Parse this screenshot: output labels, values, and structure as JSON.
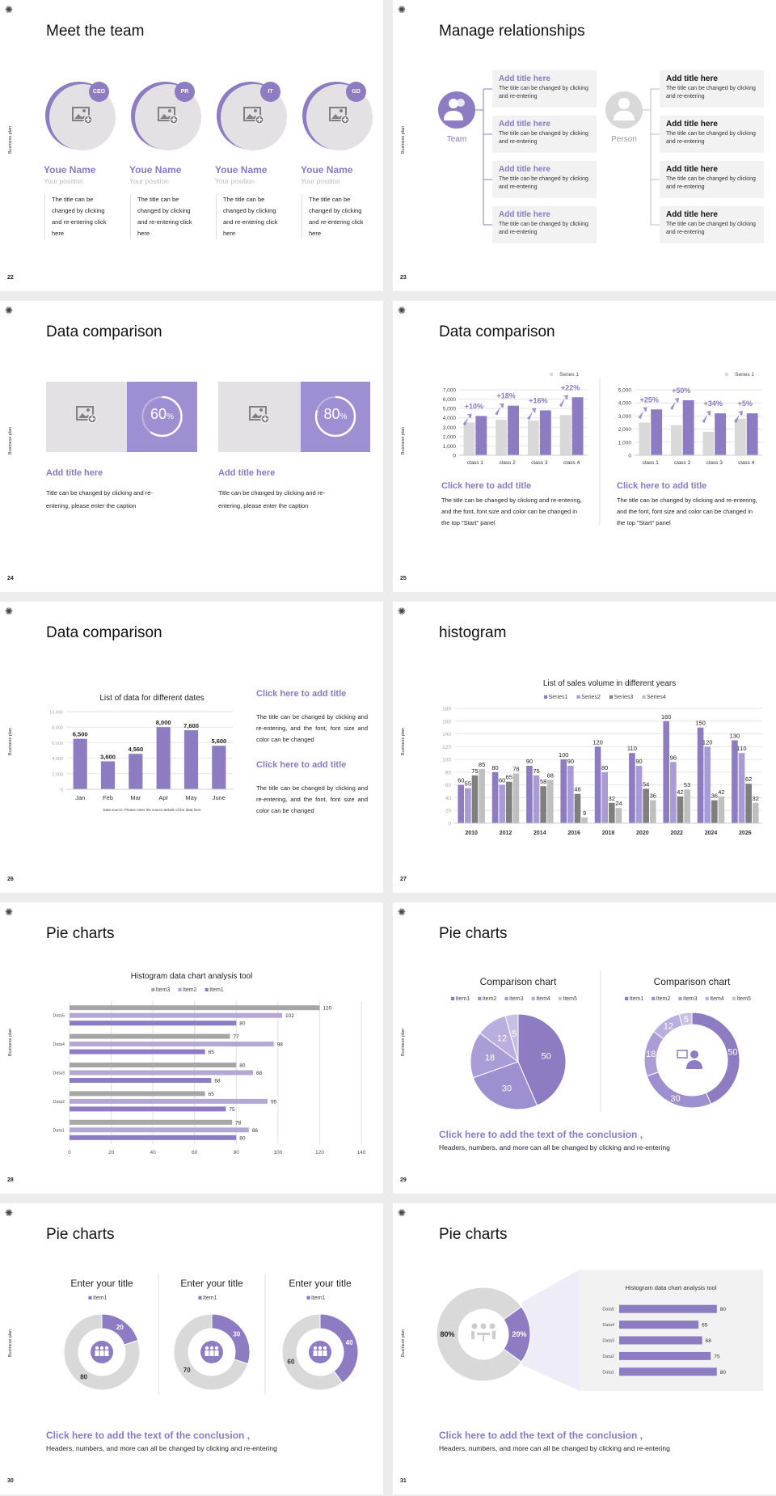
{
  "brand": {
    "sidebar_label": "Business plan",
    "colors": {
      "purple": "#8e7cc3",
      "light_purple": "#b4a7d6",
      "gray": "#d9d9d9",
      "dark_gray": "#7f7f7f",
      "mid_gray": "#a6a6a6",
      "title_purple": "#8a79c4"
    }
  },
  "s22": {
    "page": "22",
    "title": "Meet the team",
    "members": [
      {
        "badge": "CEO",
        "name": "Youe Name",
        "position": "Your position",
        "desc": "The title can be changed by clicking and re-entering click here"
      },
      {
        "badge": "PR",
        "name": "Youe Name",
        "position": "Your position",
        "desc": "The title can be changed by clicking and re-entering click here"
      },
      {
        "badge": "IT",
        "name": "Youe Name",
        "position": "Your position",
        "desc": "The title can be changed by clicking and re-entering click here"
      },
      {
        "badge": "GD",
        "name": "Youe Name",
        "position": "Your position",
        "desc": "The title can be changed by clicking and re-entering click here"
      }
    ]
  },
  "s23": {
    "page": "23",
    "title": "Manage relationships",
    "team_label": "Team",
    "person_label": "Person",
    "left_items": [
      {
        "title": "Add title here",
        "desc": "The title can be changed by clicking and re-entering"
      },
      {
        "title": "Add title here",
        "desc": "The title can be changed by clicking and re-entering"
      },
      {
        "title": "Add title here",
        "desc": "The title can be changed by clicking and re-entering"
      },
      {
        "title": "Add title here",
        "desc": "The title can be changed by clicking and re-entering"
      }
    ],
    "right_items": [
      {
        "title": "Add title here",
        "desc": "The title can be changed by clicking and re-entering"
      },
      {
        "title": "Add title here",
        "desc": "The title can be changed by clicking and re-entering"
      },
      {
        "title": "Add title here",
        "desc": "The title can be changed by clicking and re-entering"
      },
      {
        "title": "Add title here",
        "desc": "The title can be changed by clicking and re-entering"
      }
    ]
  },
  "s24": {
    "page": "24",
    "title": "Data comparison",
    "cards": [
      {
        "percent": "60",
        "unit": "%",
        "progress": 0.6,
        "title": "Add title here",
        "desc": "Title can be changed by clicking and re-entering, please enter the caption"
      },
      {
        "percent": "80",
        "unit": "%",
        "progress": 0.8,
        "title": "Add title here",
        "desc": "Title can be changed by clicking and re-entering, please enter the caption"
      }
    ]
  },
  "s25": {
    "page": "25",
    "title": "Data comparison",
    "columns": [
      {
        "title": "Click here to add title",
        "desc": "The title can be changed by clicking and re-entering, and the font, font size and color can be changed in the top \"Start\" panel"
      },
      {
        "title": "Click here to add title",
        "desc": "The title can be changed by clicking and re-entering, and the font, font size and color can be changed in the top \"Start\" panel"
      }
    ]
  },
  "s26": {
    "page": "26",
    "title": "Data comparison",
    "notes": [
      {
        "title": "Click here to add title",
        "desc": "The title can be changed by clicking and re-entering, and the font, font size and color can be changed"
      },
      {
        "title": "Click here to add title",
        "desc": "The title can be changed by clicking and re-entering, and the font, font size and color can be changed"
      }
    ]
  },
  "s27": {
    "page": "27",
    "title": "histogram"
  },
  "s28": {
    "page": "28",
    "title": "Pie charts"
  },
  "s29": {
    "page": "29",
    "title": "Pie charts",
    "conclusion": "Click here to add the text of the conclusion ,",
    "sub": "Headers, numbers, and more can all be changed by clicking and re-entering"
  },
  "s30": {
    "page": "30",
    "title": "Pie charts",
    "conclusion": "Click here to add the text of the conclusion ,",
    "sub": "Headers, numbers, and more can all be changed by clicking and re-entering"
  },
  "s31": {
    "page": "31",
    "title": "Pie charts",
    "conclusion": "Click here to add the text of the conclusion ,",
    "sub": "Headers, numbers, and more can all be changed by clicking and re-entering"
  },
  "chart_data": [
    {
      "type": "bar",
      "categories": [
        "class 1",
        "class 2",
        "class 3",
        "class 4"
      ],
      "yticks": [
        0,
        1000,
        2000,
        3000,
        4000,
        5000,
        6000,
        7000
      ],
      "ytick_labels": [
        "0",
        "1,000",
        "2,000",
        "3,000",
        "4,000",
        "5,000",
        "6,000",
        "7,000"
      ],
      "ylim": [
        0,
        7000
      ],
      "series": [
        {
          "name": "Series 1",
          "color": "#d9d9d9",
          "values": [
            3500,
            3800,
            3700,
            4300
          ]
        },
        {
          "color": "#8e7cc3",
          "values": [
            4200,
            5300,
            4800,
            6200
          ]
        }
      ],
      "annotations": [
        "+10%",
        "+18%",
        "+16%",
        "+22%"
      ],
      "legend": "top-right",
      "grid": true
    },
    {
      "type": "bar",
      "categories": [
        "class 1",
        "class 2",
        "class 3",
        "class 4"
      ],
      "yticks": [
        0,
        1000,
        2000,
        3000,
        4000,
        5000
      ],
      "ytick_labels": [
        "0",
        "1,000",
        "2,000",
        "3,000",
        "4,000",
        "5,000"
      ],
      "ylim": [
        0,
        5000
      ],
      "series": [
        {
          "name": "Series 1",
          "color": "#d9d9d9",
          "values": [
            2500,
            2300,
            1800,
            2800
          ]
        },
        {
          "color": "#8e7cc3",
          "values": [
            3500,
            4200,
            3200,
            3200
          ]
        }
      ],
      "annotations": [
        "+25%",
        "+50%",
        "+34%",
        "+5%"
      ],
      "legend": "top-right",
      "grid": true
    },
    {
      "type": "bar",
      "title": "List of data for different dates",
      "categories": [
        "Jan",
        "Feb",
        "Mar",
        "Apr",
        "May",
        "June"
      ],
      "yticks": [
        0,
        2000,
        4000,
        6000,
        8000,
        10000
      ],
      "ytick_labels": [
        "0",
        "2,000",
        "4,000",
        "6,000",
        "8,000",
        "10,000"
      ],
      "ylim": [
        0,
        10000
      ],
      "series": [
        {
          "color": "#8e7cc3",
          "values": [
            6500,
            3600,
            4560,
            8000,
            7600,
            5600
          ],
          "data_labels": [
            "6,500",
            "3,600",
            "4,560",
            "8,000",
            "7,600",
            "5,600"
          ]
        }
      ],
      "note": "Data source: Please enter the source details of the data here",
      "grid": true
    },
    {
      "type": "bar",
      "title": "List of sales volume in different years",
      "categories": [
        "2010",
        "2012",
        "2014",
        "2016",
        "2018",
        "2020",
        "2022",
        "2024",
        "2026"
      ],
      "yticks": [
        0,
        20,
        40,
        60,
        80,
        100,
        120,
        140,
        160,
        180
      ],
      "ytick_labels": [
        "0",
        "20",
        "40",
        "60",
        "80",
        "100",
        "120",
        "140",
        "160",
        "180"
      ],
      "ylim": [
        0,
        180
      ],
      "series": [
        {
          "name": "Series1",
          "color": "#8e7cc3",
          "values": [
            60,
            80,
            90,
            100,
            120,
            110,
            160,
            150,
            130
          ]
        },
        {
          "name": "Series2",
          "color": "#a99bd6",
          "values": [
            55,
            60,
            75,
            90,
            80,
            90,
            96,
            120,
            110
          ]
        },
        {
          "name": "Series3",
          "color": "#7f7f7f",
          "values": [
            75,
            65,
            58,
            46,
            32,
            54,
            42,
            36,
            62
          ]
        },
        {
          "name": "Series4",
          "color": "#bfbfbf",
          "values": [
            85,
            78,
            68,
            9,
            24,
            36,
            53,
            42,
            32
          ]
        }
      ],
      "legend": "top",
      "grid": true
    },
    {
      "type": "bar",
      "orientation": "horizontal",
      "title": "Histogram data chart analysis tool",
      "categories": [
        "Data1",
        "Data2",
        "Data3",
        "Data4",
        "Data5"
      ],
      "xticks": [
        0,
        20,
        40,
        60,
        80,
        100,
        120,
        140
      ],
      "xtick_labels": [
        "0",
        "20",
        "40",
        "60",
        "80",
        "100",
        "120",
        "140"
      ],
      "xlim": [
        0,
        140
      ],
      "series": [
        {
          "name": "Item3",
          "color": "#a6a6a6",
          "values": [
            78,
            65,
            80,
            77,
            120
          ]
        },
        {
          "name": "Item2",
          "color": "#b4a7d6",
          "values": [
            86,
            95,
            88,
            98,
            102
          ]
        },
        {
          "name": "Item1",
          "color": "#8e7cc3",
          "values": [
            80,
            75,
            68,
            65,
            80
          ]
        }
      ],
      "legend": "top",
      "grid": true
    },
    {
      "type": "pie",
      "title": "Comparison chart",
      "labels": [
        "Item1",
        "Item2",
        "Item3",
        "Item4",
        "Item5"
      ],
      "values": [
        50,
        30,
        18,
        12,
        5
      ],
      "colors": [
        "#8e7cc3",
        "#9d8fd0",
        "#aa9dd6",
        "#b9aedd",
        "#c8bfe4"
      ],
      "legend": "top"
    },
    {
      "type": "pie",
      "variant": "donut",
      "title": "Comparison chart",
      "labels": [
        "Item1",
        "Item2",
        "Item3",
        "Item4",
        "Item5"
      ],
      "values": [
        50,
        30,
        18,
        12,
        5
      ],
      "colors": [
        "#8e7cc3",
        "#9d8fd0",
        "#aa9dd6",
        "#b9aedd",
        "#c8bfe4"
      ],
      "legend": "top"
    },
    {
      "type": "pie",
      "variant": "donut",
      "title": "Enter your title",
      "labels": [
        "Item1",
        ""
      ],
      "legend_items": [
        "Item1"
      ],
      "values": [
        20,
        80
      ],
      "colors": [
        "#8e7cc3",
        "#d9d9d9"
      ],
      "legend": "top"
    },
    {
      "type": "pie",
      "variant": "donut",
      "title": "Enter your title",
      "labels": [
        "Item1",
        ""
      ],
      "legend_items": [
        "Item1"
      ],
      "values": [
        30,
        70
      ],
      "colors": [
        "#8e7cc3",
        "#d9d9d9"
      ],
      "legend": "top"
    },
    {
      "type": "pie",
      "variant": "donut",
      "title": "Enter your title",
      "labels": [
        "Item1",
        ""
      ],
      "legend_items": [
        "Item1"
      ],
      "values": [
        40,
        60
      ],
      "colors": [
        "#8e7cc3",
        "#d9d9d9"
      ],
      "legend": "top"
    },
    {
      "type": "pie",
      "variant": "donut",
      "values": [
        20,
        80
      ],
      "data_labels": [
        "20%",
        "80%"
      ],
      "colors": [
        "#8e7cc3",
        "#d9d9d9"
      ]
    },
    {
      "type": "bar",
      "orientation": "horizontal",
      "title": "Histogram data chart analysis tool",
      "categories": [
        "Data1",
        "Data2",
        "Data3",
        "Data4",
        "Data5"
      ],
      "xlim": [
        0,
        100
      ],
      "series": [
        {
          "color": "#8e7cc3",
          "values": [
            80,
            75,
            68,
            65,
            80
          ]
        }
      ]
    }
  ]
}
